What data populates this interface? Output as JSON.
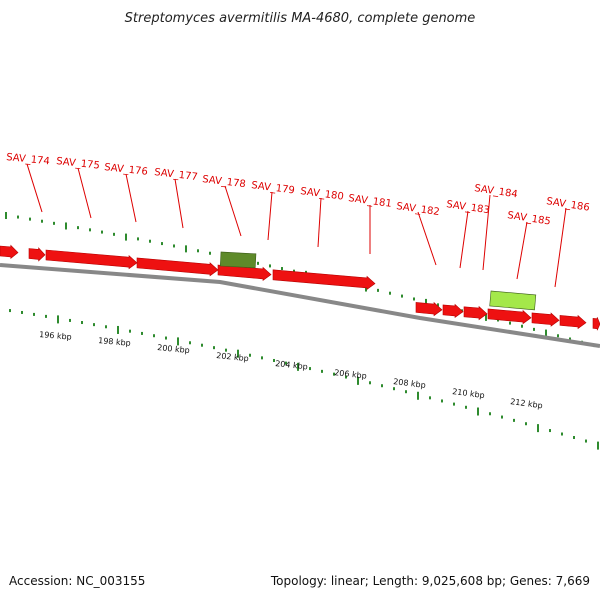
{
  "title": "Streptomyces avermitilis MA-4680, complete genome",
  "footer": {
    "accession": "Accession: NC_003155",
    "summary": "Topology: linear; Length: 9,025,608 bp; Genes: 7,669"
  },
  "colors": {
    "gene": "#ee1111",
    "feature_dark": "#5e8a2a",
    "feature_light": "#a4e84a",
    "tick": "#2e8b2e",
    "backbone": "#888888",
    "label": "#dd0000"
  },
  "genes": [
    {
      "label": "SAV_174"
    },
    {
      "label": "SAV_175"
    },
    {
      "label": "SAV_176"
    },
    {
      "label": "SAV_177"
    },
    {
      "label": "SAV_178"
    },
    {
      "label": "SAV_179"
    },
    {
      "label": "SAV_180"
    },
    {
      "label": "SAV_181"
    },
    {
      "label": "SAV_182"
    },
    {
      "label": "SAV_183"
    },
    {
      "label": "SAV_184"
    },
    {
      "label": "SAV_185"
    },
    {
      "label": "SAV_186"
    }
  ],
  "scale_labels": [
    "196 kbp",
    "198 kbp",
    "200 kbp",
    "202 kbp",
    "204 kbp",
    "206 kbp",
    "208 kbp",
    "210 kbp",
    "212 kbp"
  ]
}
